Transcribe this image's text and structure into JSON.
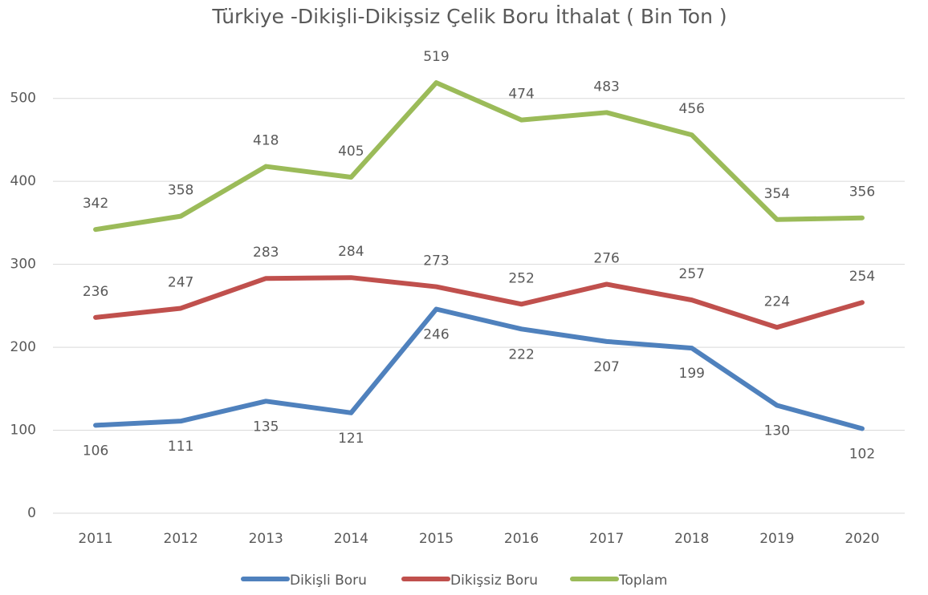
{
  "chart_data": {
    "type": "line",
    "title": "Türkiye  -Dikişli-Dikişsiz Çelik Boru İthalat ( Bin Ton )",
    "categories": [
      "2011",
      "2012",
      "2013",
      "2014",
      "2015",
      "2016",
      "2017",
      "2018",
      "2019",
      "2020"
    ],
    "series": [
      {
        "name": "Dikişli Boru",
        "color": "#4f81bd",
        "values": [
          106,
          111,
          135,
          121,
          246,
          222,
          207,
          199,
          130,
          102
        ]
      },
      {
        "name": "Dikişsiz Boru",
        "color": "#c0504d",
        "values": [
          236,
          247,
          283,
          284,
          273,
          252,
          276,
          257,
          224,
          254
        ]
      },
      {
        "name": "Toplam",
        "color": "#9bbb59",
        "values": [
          342,
          358,
          418,
          405,
          519,
          474,
          483,
          456,
          354,
          356
        ]
      }
    ],
    "ylim": [
      0,
      550
    ],
    "yticks": [
      0,
      100,
      200,
      300,
      400,
      500
    ],
    "grid": true,
    "legend": "bottom"
  }
}
